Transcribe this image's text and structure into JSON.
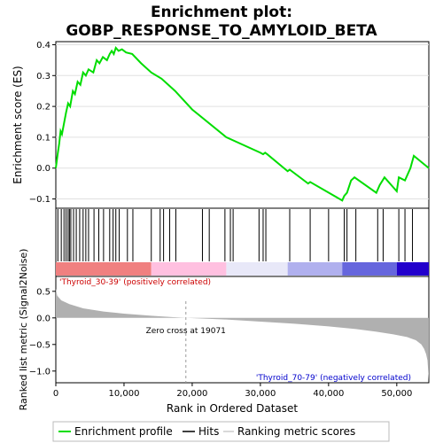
{
  "chart_data": [
    {
      "type": "line",
      "title_line1": "Enrichment plot:",
      "title_line2": "GOBP_RESPONSE_TO_AMYLOID_BETA",
      "ylabel": "Enrichment score (ES)",
      "ylim": [
        -0.13,
        0.41
      ],
      "yticks": [
        -0.1,
        0.0,
        0.1,
        0.2,
        0.3,
        0.4
      ],
      "ytick_labels": [
        "−0.1",
        "0.0",
        "0.1",
        "0.2",
        "0.3",
        "0.4"
      ],
      "xlim": [
        0,
        54700
      ],
      "color": "#00dd00",
      "series": [
        {
          "x": [
            0,
            300,
            500,
            700,
            900,
            1500,
            1800,
            2100,
            2500,
            2800,
            3200,
            3600,
            4000,
            4400,
            4800,
            5500,
            6000,
            6400,
            6900,
            7500,
            7900,
            8200,
            8500,
            8800,
            9200,
            9700,
            10300,
            11200,
            12500,
            14000,
            15500,
            16500,
            17500,
            20000,
            25000,
            30000,
            30400,
            30700,
            31000,
            34000,
            34300,
            37000,
            37300,
            42000,
            42300,
            42700,
            43300,
            43800,
            47000,
            47500,
            48200,
            50000,
            50300,
            51200,
            52000,
            52500,
            54700
          ],
          "y": [
            0.0,
            0.05,
            0.08,
            0.12,
            0.11,
            0.18,
            0.21,
            0.2,
            0.25,
            0.24,
            0.28,
            0.27,
            0.31,
            0.3,
            0.32,
            0.31,
            0.35,
            0.34,
            0.36,
            0.35,
            0.37,
            0.38,
            0.37,
            0.39,
            0.38,
            0.385,
            0.375,
            0.37,
            0.34,
            0.31,
            0.29,
            0.27,
            0.25,
            0.19,
            0.1,
            0.05,
            0.045,
            0.05,
            0.045,
            -0.01,
            -0.005,
            -0.05,
            -0.045,
            -0.105,
            -0.09,
            -0.08,
            -0.04,
            -0.03,
            -0.08,
            -0.055,
            -0.03,
            -0.075,
            -0.03,
            -0.04,
            0.0,
            0.04,
            0.0
          ]
        }
      ]
    },
    {
      "type": "hits",
      "hit_positions": [
        300,
        800,
        1200,
        1500,
        1800,
        2000,
        2200,
        2600,
        3000,
        3500,
        4000,
        4400,
        4800,
        5600,
        6300,
        7000,
        7900,
        8400,
        8800,
        9300,
        10500,
        11300,
        14000,
        15300,
        15800,
        16700,
        17600,
        21500,
        22500,
        24800,
        25600,
        26000,
        29800,
        30400,
        30800,
        34300,
        37300,
        40000,
        42300,
        42700,
        44000,
        47200,
        48000,
        50300,
        51200,
        52300
      ]
    },
    {
      "type": "heatmap",
      "description_colors": [
        "#ee1111",
        "#ffb0d0",
        "#ffffff",
        "#bbbbee",
        "#1100cc"
      ],
      "segments": [
        {
          "from": 0,
          "to": 14000,
          "color": "#f08080"
        },
        {
          "from": 14000,
          "to": 25000,
          "color": "#ffc0e0"
        },
        {
          "from": 25000,
          "to": 34000,
          "color": "#e8e8f8"
        },
        {
          "from": 34000,
          "to": 42000,
          "color": "#b0b0ee"
        },
        {
          "from": 42000,
          "to": 50000,
          "color": "#6666dd"
        },
        {
          "from": 50000,
          "to": 54700,
          "color": "#2200cc"
        }
      ]
    },
    {
      "type": "area",
      "ylabel": "Ranked list metric (Signal2Noise)",
      "xlabel": "Rank in Ordered Dataset",
      "ylim": [
        -1.22,
        0.78
      ],
      "yticks": [
        0.5,
        0.0,
        -0.5,
        -1.0
      ],
      "ytick_labels": [
        "0.5",
        "0.0",
        "−0.5",
        "−1.0"
      ],
      "xticks": [
        0,
        10000,
        20000,
        30000,
        40000,
        50000
      ],
      "xtick_labels": [
        "0",
        "10,000",
        "20,000",
        "30,000",
        "40,000",
        "50,000"
      ],
      "xlim": [
        0,
        54700
      ],
      "zero_cross_label": "Zero cross at 19071",
      "zero_cross": 19071,
      "pos_label": "'Thyroid_30-39' (positively correlated)",
      "neg_label": "'Thyroid_70-79' (negatively correlated)",
      "pos_label_color": "#cc0000",
      "neg_label_color": "#0000cc",
      "fill_color": "#b0b0b0",
      "x": [
        0,
        200,
        800,
        2000,
        4000,
        7000,
        10000,
        14000,
        17000,
        19071,
        19071,
        25000,
        30000,
        35000,
        40000,
        44000,
        47000,
        49500,
        51500,
        52800,
        53600,
        54000,
        54300,
        54500,
        54700
      ],
      "y": [
        0.55,
        0.42,
        0.33,
        0.26,
        0.18,
        0.12,
        0.08,
        0.04,
        0.015,
        0.0,
        0.0,
        -0.03,
        -0.07,
        -0.11,
        -0.16,
        -0.21,
        -0.26,
        -0.31,
        -0.36,
        -0.42,
        -0.5,
        -0.58,
        -0.68,
        -0.8,
        -1.17
      ]
    }
  ],
  "legend": {
    "enrichment_label": "Enrichment profile",
    "hits_label": "Hits",
    "ranking_label": "Ranking metric scores"
  }
}
